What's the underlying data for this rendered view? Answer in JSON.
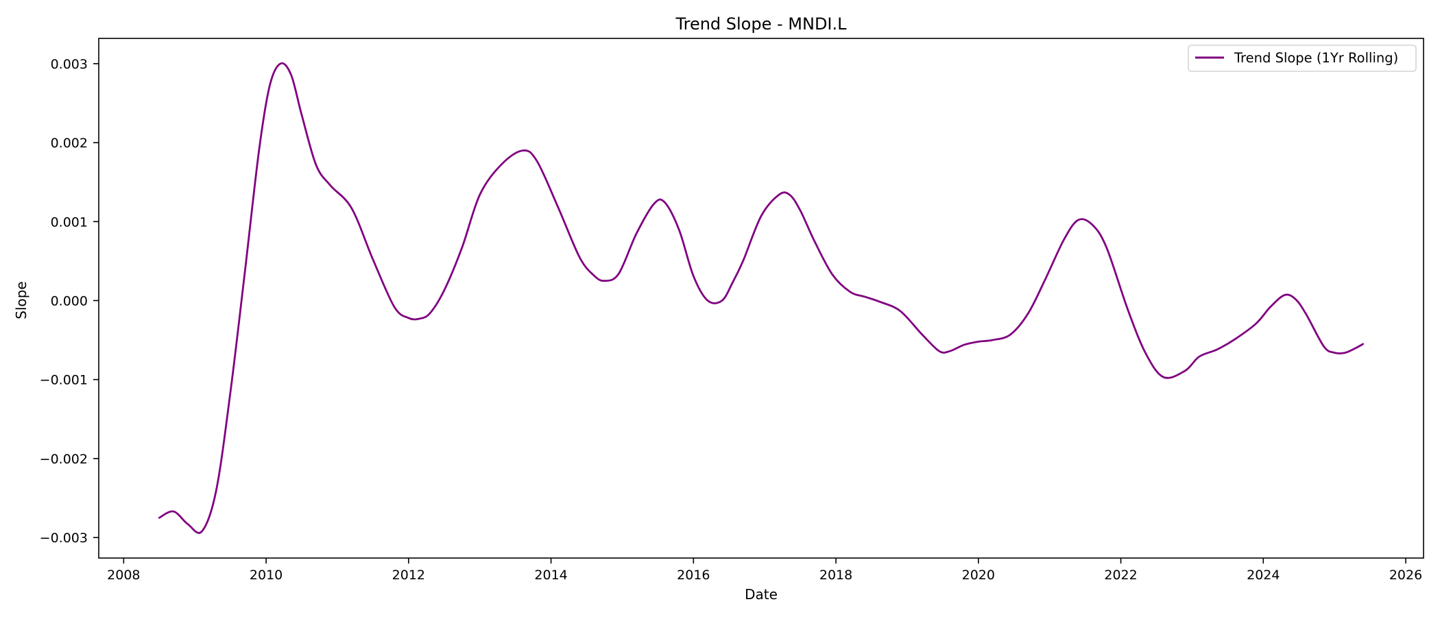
{
  "chart_data": {
    "type": "line",
    "title": "Trend Slope - MNDI.L",
    "xlabel": "Date",
    "ylabel": "Slope",
    "xlim": [
      2007.65,
      2026.25
    ],
    "ylim": [
      -0.00326,
      0.00332
    ],
    "x_ticks": [
      2008,
      2010,
      2012,
      2014,
      2016,
      2018,
      2020,
      2022,
      2024,
      2026
    ],
    "x_tick_labels": [
      "2008",
      "2010",
      "2012",
      "2014",
      "2016",
      "2018",
      "2020",
      "2022",
      "2024",
      "2026"
    ],
    "y_ticks": [
      -0.003,
      -0.002,
      -0.001,
      0.0,
      0.001,
      0.002,
      0.003
    ],
    "y_tick_labels": [
      "−0.003",
      "−0.002",
      "−0.001",
      "0.000",
      "0.001",
      "0.002",
      "0.003"
    ],
    "grid": false,
    "legend": {
      "position": "top-right"
    },
    "colors": {
      "line": "#800080",
      "axes": "#000000",
      "background": "#ffffff"
    },
    "series": [
      {
        "name": "Trend Slope (1Yr Rolling)",
        "x": [
          2008.5,
          2008.7,
          2008.9,
          2009.1,
          2009.3,
          2009.5,
          2009.7,
          2009.9,
          2010.05,
          2010.2,
          2010.35,
          2010.5,
          2010.7,
          2010.9,
          2011.2,
          2011.5,
          2011.8,
          2012.0,
          2012.15,
          2012.3,
          2012.5,
          2012.75,
          2013.0,
          2013.3,
          2013.6,
          2013.8,
          2014.1,
          2014.4,
          2014.6,
          2014.75,
          2014.95,
          2015.2,
          2015.45,
          2015.6,
          2015.8,
          2016.0,
          2016.2,
          2016.4,
          2016.55,
          2016.7,
          2016.95,
          2017.2,
          2017.35,
          2017.5,
          2017.7,
          2017.95,
          2018.2,
          2018.4,
          2018.6,
          2018.9,
          2019.2,
          2019.45,
          2019.6,
          2019.8,
          2020.0,
          2020.2,
          2020.45,
          2020.7,
          2020.95,
          2021.2,
          2021.4,
          2021.6,
          2021.8,
          2022.1,
          2022.35,
          2022.6,
          2022.9,
          2023.1,
          2023.35,
          2023.6,
          2023.9,
          2024.1,
          2024.3,
          2024.45,
          2024.6,
          2024.85,
          2025.0,
          2025.15,
          2025.3,
          2025.4
        ],
        "values": [
          -0.00275,
          -0.00267,
          -0.00283,
          -0.00292,
          -0.0024,
          -0.00115,
          0.00035,
          0.0019,
          0.00272,
          0.003,
          0.00286,
          0.00235,
          0.00172,
          0.00146,
          0.00117,
          0.00052,
          -8e-05,
          -0.00022,
          -0.00023,
          -0.00016,
          0.00013,
          0.00067,
          0.00134,
          0.00172,
          0.0019,
          0.00177,
          0.00118,
          0.00055,
          0.00032,
          0.00025,
          0.00034,
          0.00085,
          0.00123,
          0.00124,
          0.00089,
          0.00031,
          -0.0,
          -0.0,
          0.00023,
          0.00051,
          0.00107,
          0.00134,
          0.00134,
          0.00114,
          0.00075,
          0.00033,
          0.00011,
          5e-05,
          -1e-05,
          -0.00013,
          -0.00042,
          -0.00064,
          -0.00064,
          -0.00056,
          -0.00052,
          -0.0005,
          -0.00043,
          -0.00016,
          0.00029,
          0.00077,
          0.00102,
          0.00096,
          0.00067,
          -0.00012,
          -0.00067,
          -0.00097,
          -0.00089,
          -0.00071,
          -0.00062,
          -0.00049,
          -0.00029,
          -8e-05,
          7e-05,
          2e-05,
          -0.00017,
          -0.00058,
          -0.00066,
          -0.00066,
          -0.0006,
          -0.00055
        ]
      }
    ]
  }
}
